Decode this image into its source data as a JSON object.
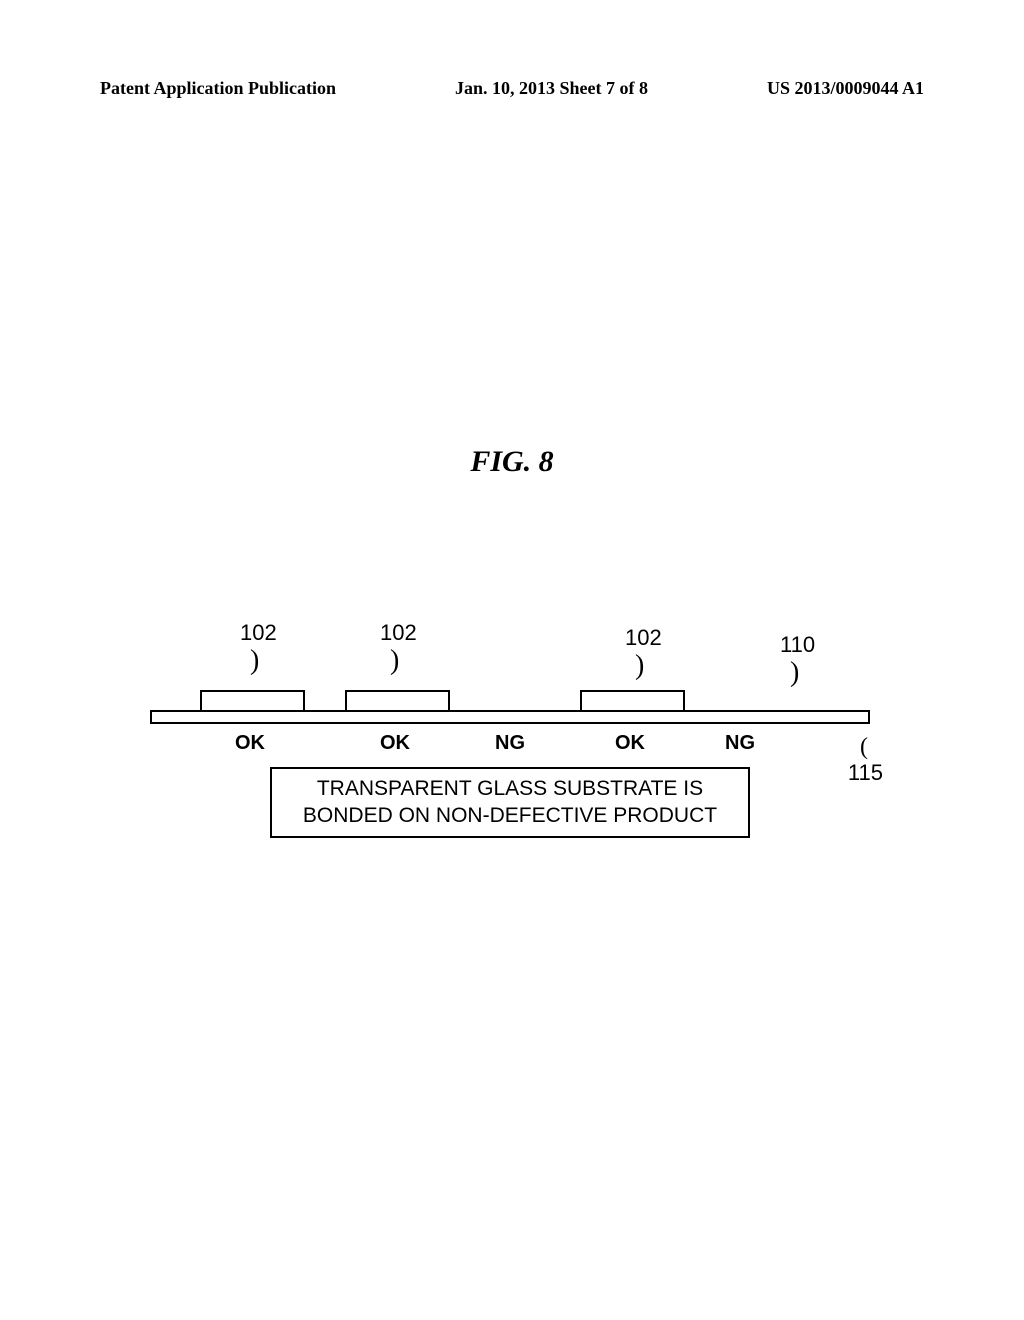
{
  "header": {
    "left": "Patent Application Publication",
    "center": "Jan. 10, 2013  Sheet 7 of 8",
    "right": "US 2013/0009044 A1"
  },
  "figure": {
    "title": "FIG. 8",
    "labels": {
      "ref_102_a": "102",
      "ref_102_b": "102",
      "ref_102_c": "102",
      "ref_110": "110",
      "ref_115": "115"
    },
    "leaders": {
      "l1": ")",
      "l2": ")",
      "l3": ")",
      "l4": ")",
      "l5": "("
    },
    "status": {
      "s1": "OK",
      "s2": "OK",
      "s3": "NG",
      "s4": "OK",
      "s5": "NG"
    },
    "caption_line1": "TRANSPARENT GLASS SUBSTRATE IS",
    "caption_line2": "BONDED ON NON-DEFECTIVE PRODUCT",
    "styling": {
      "block_border_color": "#000000",
      "block_fill_color": "#ffffff",
      "background": "#ffffff",
      "title_fontsize": 30,
      "label_fontsize": 22,
      "status_fontsize": 20,
      "caption_fontsize": 21,
      "leader_char": ")"
    }
  }
}
